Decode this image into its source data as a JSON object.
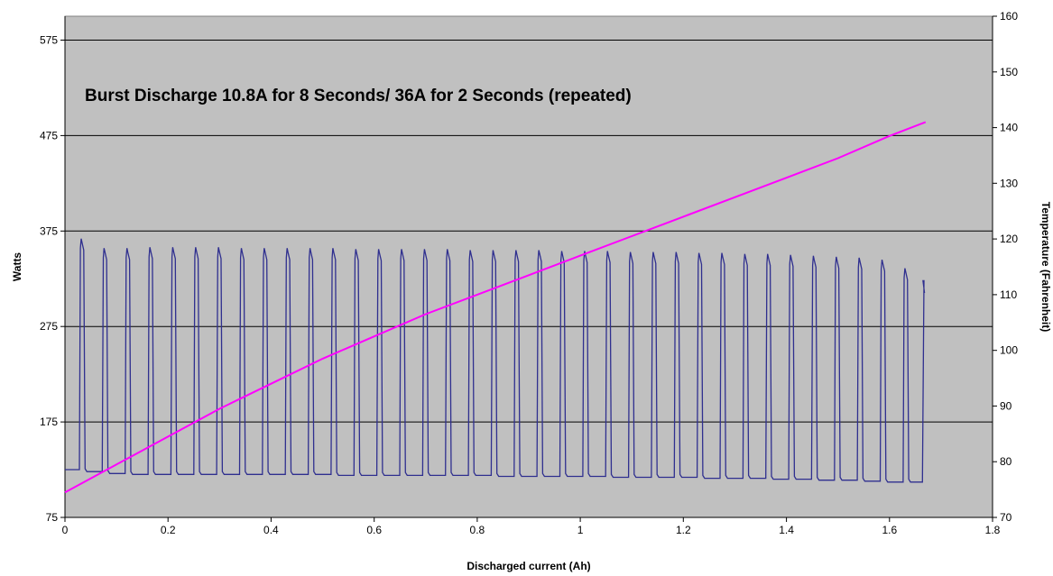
{
  "chart_data": {
    "type": "line",
    "title": "Burst Discharge 10.8A for 8 Seconds/ 36A for 2 Seconds (repeated)",
    "xlabel": "Discharged current (Ah)",
    "ylabel": "Watts",
    "y2label": "Temperature (Fahrenheit)",
    "xlim": [
      0,
      1.8
    ],
    "ylim": [
      75,
      600
    ],
    "y2lim": [
      70,
      160
    ],
    "x_ticks": [
      "0",
      "0.2",
      "0.4",
      "0.6",
      "0.8",
      "1",
      "1.2",
      "1.4",
      "1.6",
      "1.8"
    ],
    "y_ticks": [
      "75",
      "175",
      "275",
      "375",
      "475",
      "575"
    ],
    "y2_ticks": [
      "70",
      "80",
      "90",
      "100",
      "110",
      "120",
      "130",
      "140",
      "150",
      "160"
    ],
    "grid": true,
    "background": "#c0c0c0",
    "watts_series": {
      "axis": "left",
      "color": "#2f2f8f",
      "pulse_count": 37,
      "period_ah": 0.0444,
      "pulse_width_ah": 0.0085,
      "x": [
        0,
        0.023,
        0.028,
        0.033,
        0.038,
        0.042,
        1.66,
        1.668
      ],
      "high_values": [
        367,
        357,
        357,
        358,
        358,
        358,
        358,
        357,
        357,
        357,
        357,
        357,
        356,
        356,
        356,
        356,
        356,
        355,
        355,
        355,
        355,
        354,
        354,
        354,
        353,
        353,
        353,
        352,
        352,
        351,
        351,
        350,
        349,
        348,
        347,
        345,
        336
      ],
      "low_values": [
        125,
        123,
        121,
        120,
        120,
        120,
        120,
        120,
        120,
        120,
        120,
        120,
        119,
        119,
        119,
        119,
        119,
        119,
        119,
        118,
        118,
        118,
        118,
        118,
        117,
        117,
        117,
        117,
        116,
        116,
        116,
        115,
        115,
        114,
        114,
        113,
        112
      ],
      "end": {
        "x": 1.665,
        "high": 323,
        "final": 310
      }
    },
    "temperature_series": {
      "axis": "right",
      "color": "#ff00ff",
      "x": [
        0,
        0.1,
        0.2,
        0.3,
        0.4,
        0.5,
        0.6,
        0.7,
        0.8,
        0.9,
        1.0,
        1.1,
        1.2,
        1.3,
        1.4,
        1.5,
        1.6,
        1.67
      ],
      "values": [
        74.5,
        79.5,
        84.5,
        89.5,
        94,
        98.5,
        102.5,
        106.5,
        110,
        113.5,
        117,
        120.5,
        124,
        127.5,
        131,
        134.5,
        138.5,
        141
      ]
    }
  }
}
